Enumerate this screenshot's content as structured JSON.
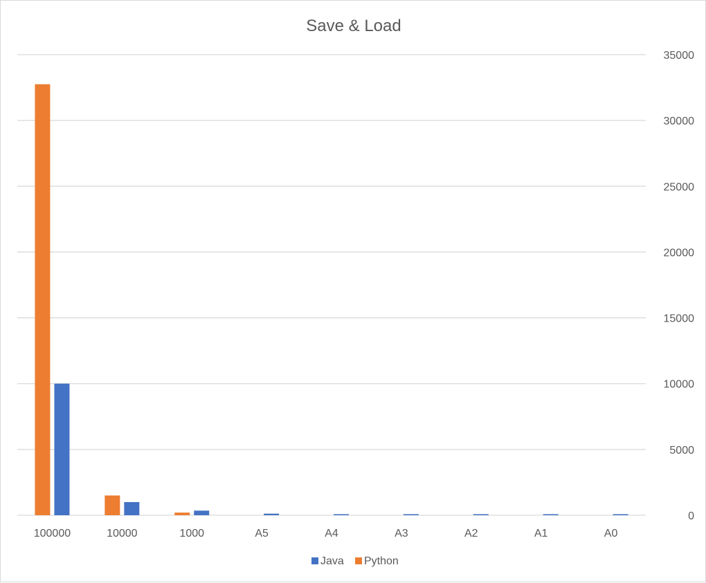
{
  "chart_data": {
    "type": "bar",
    "title": "Save & Load",
    "xlabel": "",
    "ylabel": "",
    "categories": [
      "100000",
      "10000",
      "1000",
      "A5",
      "A4",
      "A3",
      "A2",
      "A1",
      "A0"
    ],
    "series": [
      {
        "name": "Python",
        "color": "#ED7D31",
        "values": [
          32750,
          1500,
          200,
          0,
          0,
          0,
          0,
          0,
          0
        ]
      },
      {
        "name": "Java",
        "color": "#4472C4",
        "values": [
          10000,
          1000,
          350,
          120,
          80,
          80,
          80,
          80,
          80
        ]
      }
    ],
    "legend_order": [
      "Java",
      "Python"
    ],
    "ylim": [
      0,
      35000
    ],
    "yticks": [
      0,
      5000,
      10000,
      15000,
      20000,
      25000,
      30000,
      35000
    ],
    "y_axis_side": "right",
    "grid": true,
    "legend_position": "bottom"
  }
}
